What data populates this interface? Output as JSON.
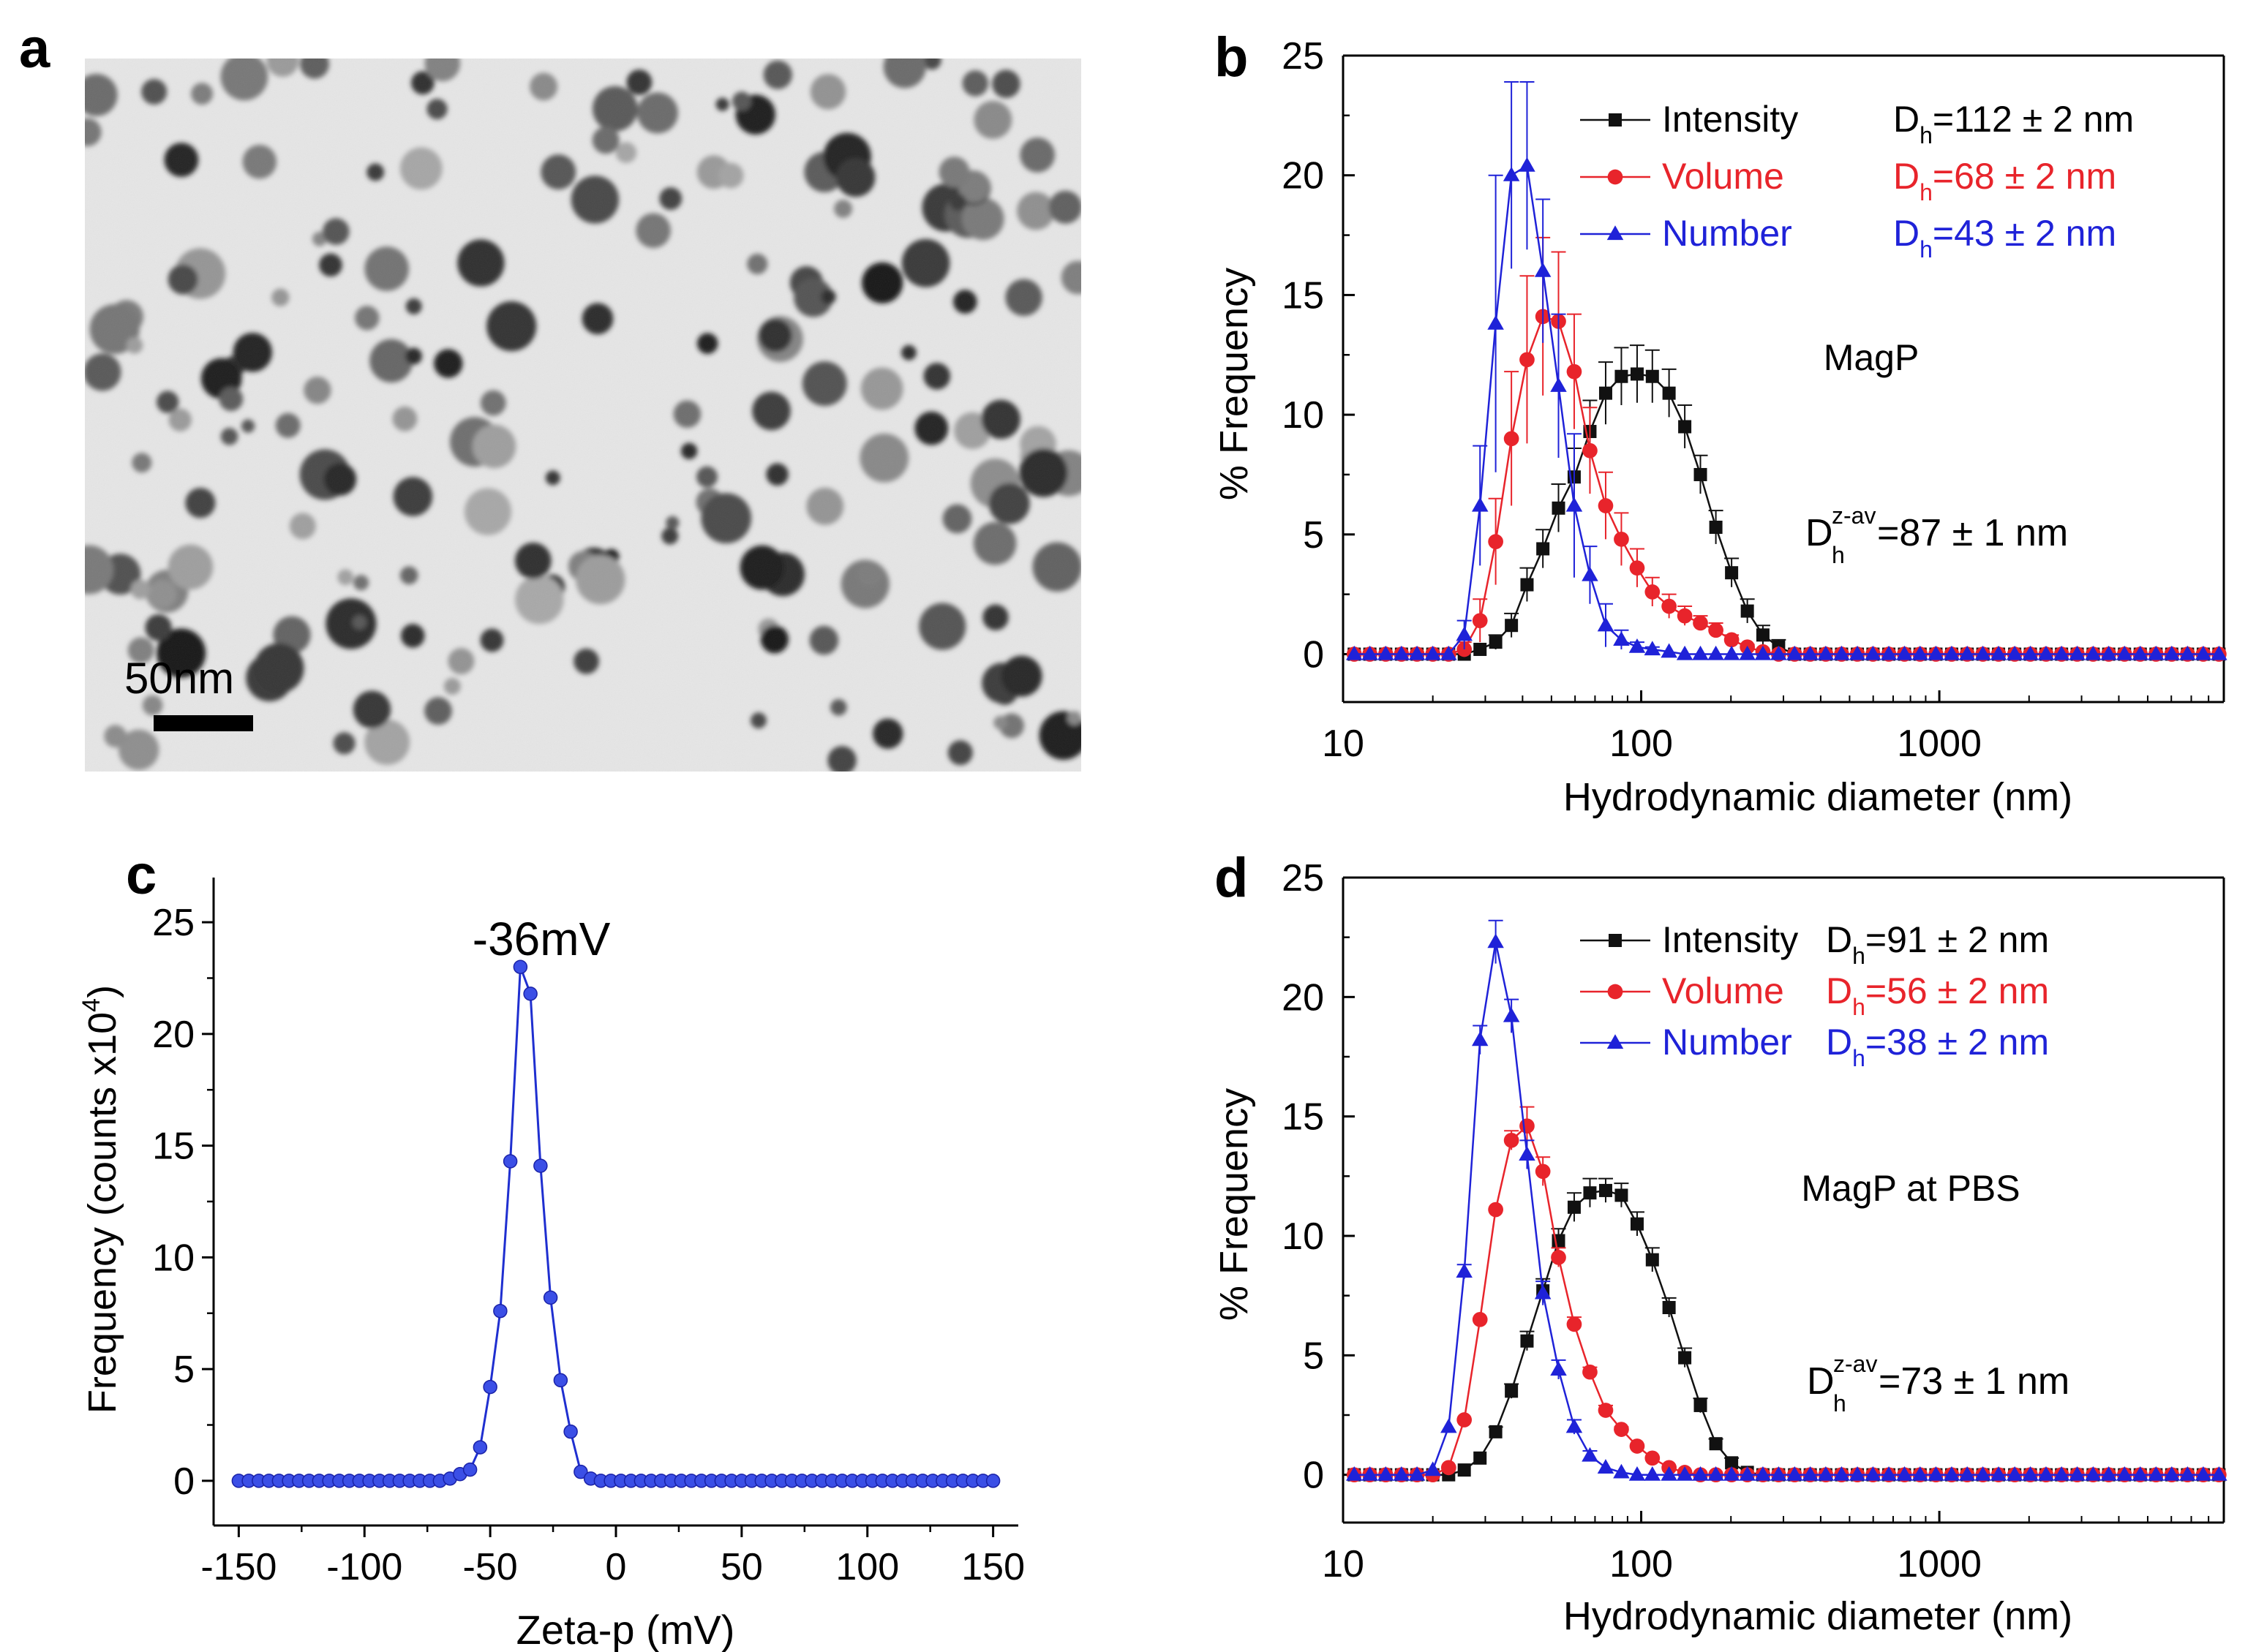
{
  "colors": {
    "black": "#111111",
    "red": "#e8242b",
    "blue": "#1f22d8",
    "axis": "#000000",
    "zeta": "#1f2fd0"
  },
  "panel_a": {
    "label": "a",
    "scale_bar_label": "50nm",
    "image_description_icon": "tem-micrograph-image"
  },
  "chart_data": [
    {
      "id": "b",
      "type": "line",
      "panel_label": "b",
      "title": "MagP",
      "xlabel": "Hydrodynamic diameter (nm)",
      "ylabel": "% Frequency",
      "xscale": "log",
      "xlim": [
        10,
        9000
      ],
      "ylim": [
        -2,
        25
      ],
      "xticks": [
        10,
        100,
        1000
      ],
      "xtick_labels": [
        "10",
        "100",
        "1000"
      ],
      "yticks": [
        0,
        5,
        10,
        15,
        20,
        25
      ],
      "ytick_labels": [
        "0",
        "5",
        "10",
        "15",
        "20",
        "25"
      ],
      "zav_prefix": "D",
      "zav_sub": "h",
      "zav_sup": "z-av",
      "zav_value": "=87 ± 1 nm",
      "x": [
        10.9,
        12.3,
        13.9,
        15.7,
        17.7,
        20.0,
        22.6,
        25.5,
        28.8,
        32.5,
        36.7,
        41.4,
        46.8,
        52.8,
        59.6,
        67.3,
        76.0,
        85.8,
        96.9,
        109,
        124,
        140,
        158,
        178,
        201,
        227,
        256,
        289,
        327,
        369,
        416,
        470,
        531,
        599,
        677,
        764,
        862,
        974,
        1100,
        1240,
        1400,
        1580,
        1790,
        2020,
        2280,
        2570,
        2900,
        3280,
        3700,
        4180,
        4720,
        5330,
        6020,
        6800,
        7680,
        8670
      ],
      "series": [
        {
          "name": "Intensity",
          "color": "black",
          "marker": "square",
          "label_value": "=112 ± 2 nm",
          "values": [
            0,
            0,
            0,
            0,
            0,
            0,
            0,
            0,
            0.2,
            0.5,
            1.2,
            2.9,
            4.4,
            6.1,
            7.4,
            9.3,
            10.9,
            11.6,
            11.7,
            11.6,
            10.9,
            9.5,
            7.5,
            5.3,
            3.4,
            1.8,
            0.8,
            0.3,
            0,
            0,
            0,
            0,
            0,
            0,
            0,
            0,
            0,
            0,
            0,
            0,
            0,
            0,
            0,
            0,
            0,
            0,
            0,
            0,
            0,
            0,
            0,
            0,
            0,
            0,
            0,
            0
          ],
          "errors": [
            0,
            0,
            0,
            0,
            0,
            0,
            0,
            0,
            0,
            0.3,
            0.5,
            0.7,
            0.8,
            1.0,
            1.2,
            1.3,
            1.3,
            1.2,
            1.2,
            1.1,
            1.0,
            0.9,
            0.8,
            0.7,
            0.6,
            0.5,
            0.4,
            0.3,
            0,
            0,
            0,
            0,
            0,
            0,
            0,
            0,
            0,
            0,
            0,
            0,
            0,
            0,
            0,
            0,
            0,
            0,
            0,
            0,
            0,
            0,
            0,
            0,
            0,
            0,
            0,
            0
          ]
        },
        {
          "name": "Volume",
          "color": "red",
          "marker": "circle",
          "label_value": "=68 ± 2 nm",
          "values": [
            0,
            0,
            0,
            0,
            0,
            0,
            0,
            0.2,
            1.4,
            4.7,
            9.0,
            12.3,
            14.1,
            13.9,
            11.8,
            8.5,
            6.2,
            4.8,
            3.6,
            2.6,
            2.0,
            1.6,
            1.3,
            1.0,
            0.6,
            0.3,
            0.1,
            0,
            0,
            0,
            0,
            0,
            0,
            0,
            0,
            0,
            0,
            0,
            0,
            0,
            0,
            0,
            0,
            0,
            0,
            0,
            0,
            0,
            0,
            0,
            0,
            0,
            0,
            0,
            0,
            0
          ],
          "errors": [
            0,
            0,
            0,
            0,
            0,
            0,
            0,
            0.3,
            0.9,
            1.8,
            2.8,
            3.5,
            3.3,
            2.9,
            2.4,
            1.8,
            1.4,
            1.1,
            0.8,
            0.6,
            0.5,
            0.4,
            0.3,
            0.3,
            0.2,
            0.1,
            0,
            0,
            0,
            0,
            0,
            0,
            0,
            0,
            0,
            0,
            0,
            0,
            0,
            0,
            0,
            0,
            0,
            0,
            0,
            0,
            0,
            0,
            0,
            0,
            0,
            0,
            0,
            0,
            0,
            0
          ],
          "show_marker_from": 0
        },
        {
          "name": "Number",
          "color": "blue",
          "marker": "triangle",
          "label_value": "=43 ± 2 nm",
          "values": [
            0,
            0,
            0,
            0,
            0,
            0,
            0,
            0.8,
            6.2,
            13.8,
            20.0,
            20.4,
            16.0,
            11.2,
            6.2,
            3.3,
            1.2,
            0.6,
            0.3,
            0.2,
            0.1,
            0,
            0,
            0,
            0,
            0,
            0,
            0,
            0,
            0,
            0,
            0,
            0,
            0,
            0,
            0,
            0,
            0,
            0,
            0,
            0,
            0,
            0,
            0,
            0,
            0,
            0,
            0,
            0,
            0,
            0,
            0,
            0,
            0,
            0,
            0
          ],
          "errors": [
            0,
            0,
            0,
            0,
            0,
            0,
            0,
            0.6,
            2.5,
            6.2,
            3.9,
            3.5,
            3.0,
            3.0,
            3.0,
            1.2,
            0.9,
            0.4,
            0.2,
            0.1,
            0,
            0,
            0,
            0,
            0,
            0,
            0,
            0,
            0,
            0,
            0,
            0,
            0,
            0,
            0,
            0,
            0,
            0,
            0,
            0,
            0,
            0,
            0,
            0,
            0,
            0,
            0,
            0,
            0,
            0,
            0,
            0,
            0,
            0,
            0,
            0
          ]
        }
      ]
    },
    {
      "id": "c",
      "type": "line",
      "panel_label": "c",
      "title": "-36mV",
      "xlabel": "Zeta-p (mV)",
      "ylabel_prefix": "Frequency (counts x10",
      "ylabel_sup": "4",
      "ylabel_suffix": ")",
      "xlim": [
        -160,
        160
      ],
      "ylim": [
        -2,
        27
      ],
      "xticks": [
        -150,
        -100,
        -50,
        0,
        50,
        100,
        150
      ],
      "xtick_labels": [
        "-150",
        "-100",
        "-50",
        "0",
        "50",
        "100",
        "150"
      ],
      "yticks": [
        0,
        5,
        10,
        15,
        20,
        25
      ],
      "ytick_labels": [
        "0",
        "5",
        "10",
        "15",
        "20",
        "25"
      ],
      "x": [
        -150,
        -146,
        -142,
        -138,
        -134,
        -130,
        -126,
        -122,
        -118,
        -114,
        -110,
        -106,
        -102,
        -98,
        -94,
        -90,
        -86,
        -82,
        -78,
        -74,
        -70,
        -66,
        -62,
        -58,
        -54,
        -50,
        -46,
        -42,
        -38,
        -34,
        -30,
        -26,
        -22,
        -18,
        -14,
        -10,
        -6,
        -2,
        2,
        6,
        10,
        14,
        18,
        22,
        26,
        30,
        34,
        38,
        42,
        46,
        50,
        54,
        58,
        62,
        66,
        70,
        74,
        78,
        82,
        86,
        90,
        94,
        98,
        102,
        106,
        110,
        114,
        118,
        122,
        126,
        130,
        134,
        138,
        142,
        146,
        150
      ],
      "values": [
        0,
        0,
        0,
        0,
        0,
        0,
        0,
        0,
        0,
        0,
        0,
        0,
        0,
        0,
        0,
        0,
        0,
        0,
        0,
        0,
        0,
        0.1,
        0.3,
        0.5,
        1.5,
        4.2,
        7.6,
        14.3,
        23.0,
        21.8,
        14.1,
        8.2,
        4.5,
        2.2,
        0.4,
        0.1,
        0,
        0,
        0,
        0,
        0,
        0,
        0,
        0,
        0,
        0,
        0,
        0,
        0,
        0,
        0,
        0,
        0,
        0,
        0,
        0,
        0,
        0,
        0,
        0,
        0,
        0,
        0,
        0,
        0,
        0,
        0,
        0,
        0,
        0,
        0,
        0,
        0,
        0,
        0,
        0
      ]
    },
    {
      "id": "d",
      "type": "line",
      "panel_label": "d",
      "title": "MagP at PBS",
      "xlabel": "Hydrodynamic diameter (nm)",
      "ylabel": "% Frequency",
      "xscale": "log",
      "xlim": [
        10,
        9000
      ],
      "ylim": [
        -2,
        25
      ],
      "xticks": [
        10,
        100,
        1000
      ],
      "xtick_labels": [
        "10",
        "100",
        "1000"
      ],
      "yticks": [
        0,
        5,
        10,
        15,
        20,
        25
      ],
      "ytick_labels": [
        "0",
        "5",
        "10",
        "15",
        "20",
        "25"
      ],
      "zav_prefix": "D",
      "zav_sub": "h",
      "zav_sup": "z-av",
      "zav_value": "=73 ± 1 nm",
      "x": [
        10.9,
        12.3,
        13.9,
        15.7,
        17.7,
        20.0,
        22.6,
        25.5,
        28.8,
        32.5,
        36.7,
        41.4,
        46.8,
        52.8,
        59.6,
        67.3,
        76.0,
        85.8,
        96.9,
        109,
        124,
        140,
        158,
        178,
        201,
        227,
        256,
        289,
        327,
        369,
        416,
        470,
        531,
        599,
        677,
        764,
        862,
        974,
        1100,
        1240,
        1400,
        1580,
        1790,
        2020,
        2280,
        2570,
        2900,
        3280,
        3700,
        4180,
        4720,
        5330,
        6020,
        6800,
        7680,
        8670
      ],
      "series": [
        {
          "name": "Intensity",
          "color": "black",
          "marker": "square",
          "label_value": "=91 ± 2 nm",
          "values": [
            0,
            0,
            0,
            0,
            0,
            0,
            0,
            0.2,
            0.7,
            1.8,
            3.5,
            5.6,
            7.7,
            9.8,
            11.2,
            11.8,
            11.9,
            11.7,
            10.5,
            9.0,
            7.0,
            4.9,
            2.9,
            1.3,
            0.5,
            0.1,
            0,
            0,
            0,
            0,
            0,
            0,
            0,
            0,
            0,
            0,
            0,
            0,
            0,
            0,
            0,
            0,
            0,
            0,
            0,
            0,
            0,
            0,
            0,
            0,
            0,
            0,
            0,
            0,
            0,
            0
          ],
          "errors": [
            0,
            0,
            0,
            0,
            0,
            0,
            0,
            0,
            0,
            0.2,
            0.3,
            0.4,
            0.5,
            0.5,
            0.6,
            0.6,
            0.5,
            0.5,
            0.5,
            0.5,
            0.4,
            0.4,
            0.3,
            0.2,
            0.2,
            0,
            0,
            0,
            0,
            0,
            0,
            0,
            0,
            0,
            0,
            0,
            0,
            0,
            0,
            0,
            0,
            0,
            0,
            0,
            0,
            0,
            0,
            0,
            0,
            0,
            0,
            0,
            0,
            0,
            0,
            0
          ]
        },
        {
          "name": "Volume",
          "color": "red",
          "marker": "circle",
          "label_value": "=56 ± 2 nm",
          "values": [
            0,
            0,
            0,
            0,
            0,
            0,
            0.3,
            2.3,
            6.5,
            11.1,
            14.0,
            14.6,
            12.7,
            9.1,
            6.3,
            4.3,
            2.7,
            1.9,
            1.2,
            0.7,
            0.3,
            0.1,
            0,
            0,
            0,
            0,
            0,
            0,
            0,
            0,
            0,
            0,
            0,
            0,
            0,
            0,
            0,
            0,
            0,
            0,
            0,
            0,
            0,
            0,
            0,
            0,
            0,
            0,
            0,
            0,
            0,
            0,
            0,
            0,
            0,
            0
          ],
          "errors": [
            0,
            0,
            0,
            0,
            0,
            0,
            0,
            0,
            0,
            0,
            0.4,
            0.8,
            0.6,
            0.4,
            0.3,
            0.2,
            0.2,
            0.1,
            0,
            0,
            0,
            0,
            0,
            0,
            0,
            0,
            0,
            0,
            0,
            0,
            0,
            0,
            0,
            0,
            0,
            0,
            0,
            0,
            0,
            0,
            0,
            0,
            0,
            0,
            0,
            0,
            0,
            0,
            0,
            0,
            0,
            0,
            0,
            0,
            0,
            0
          ]
        },
        {
          "name": "Number",
          "color": "blue",
          "marker": "triangle",
          "label_value": "=38 ± 2 nm",
          "values": [
            0,
            0,
            0,
            0,
            0,
            0.2,
            2.0,
            8.5,
            18.2,
            22.3,
            19.2,
            13.4,
            7.6,
            4.4,
            2.0,
            0.8,
            0.3,
            0.1,
            0,
            0,
            0,
            0,
            0,
            0,
            0,
            0,
            0,
            0,
            0,
            0,
            0,
            0,
            0,
            0,
            0,
            0,
            0,
            0,
            0,
            0,
            0,
            0,
            0,
            0,
            0,
            0,
            0,
            0,
            0,
            0,
            0,
            0,
            0,
            0,
            0,
            0
          ],
          "errors": [
            0,
            0,
            0,
            0,
            0,
            0,
            0,
            0.3,
            0.6,
            0.9,
            0.7,
            0.6,
            0.5,
            0.4,
            0.3,
            0.2,
            0,
            0,
            0,
            0,
            0,
            0,
            0,
            0,
            0,
            0,
            0,
            0,
            0,
            0,
            0,
            0,
            0,
            0,
            0,
            0,
            0,
            0,
            0,
            0,
            0,
            0,
            0,
            0,
            0,
            0,
            0,
            0,
            0,
            0,
            0,
            0,
            0,
            0,
            0,
            0
          ]
        }
      ]
    }
  ]
}
